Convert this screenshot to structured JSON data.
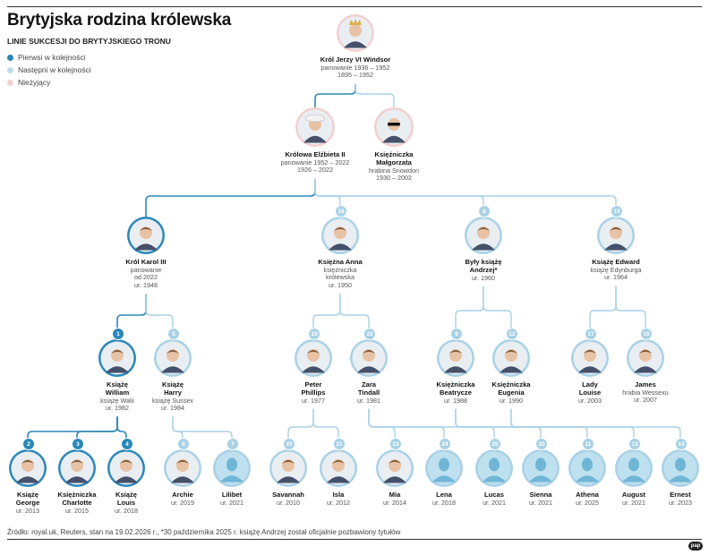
{
  "title": "Brytyjska rodzina królewska",
  "subtitle": "LINIE SUKCESJI DO BRYTYJSKIEGO TRONU",
  "legend": [
    {
      "label": "Pierwsi w kolejności",
      "color": "#2b87b8"
    },
    {
      "label": "Następni w kolejności",
      "color": "#bcdcec"
    },
    {
      "label": "Nieżyjący",
      "color": "#f1d0cf"
    }
  ],
  "colors": {
    "first": "#2b87b8",
    "next": "#a9d1e6",
    "deceased": "#f1d0cf",
    "line_first": "#2b87b8",
    "line_next": "#a9d1e6"
  },
  "people": [
    {
      "id": "jerzy",
      "status": "deceased",
      "icon": "portrait-crown",
      "lines": [
        "Król Jerzy VI Windsor",
        "panowanie 1936 – 1952",
        "1895 – 1952"
      ],
      "bold": 1
    },
    {
      "id": "elzbieta",
      "status": "deceased",
      "icon": "portrait-hat",
      "lines": [
        "Królowa Elżbieta II",
        "panowanie 1952 – 2022",
        "1926 – 2022"
      ],
      "bold": 1
    },
    {
      "id": "malgorzata",
      "status": "deceased",
      "icon": "portrait-sunglasses",
      "lines": [
        "Księżniczka",
        "Małgorzata",
        "hrabina Snowdon",
        "1930 – 2002"
      ],
      "bold": 2
    },
    {
      "id": "karol",
      "status": "first",
      "icon": "portrait",
      "lines": [
        "Król Karol III",
        "panowanie",
        "od 2022",
        "ur. 1948"
      ],
      "bold": 1
    },
    {
      "id": "anna",
      "status": "next",
      "rank": "18",
      "icon": "portrait",
      "lines": [
        "Księżna Anna",
        "księżniczka",
        "królewska",
        "ur. 1950"
      ],
      "bold": 1
    },
    {
      "id": "andrzej",
      "status": "next",
      "rank": "8",
      "icon": "portrait",
      "lines": [
        "Były książę",
        "Andrzej*",
        "ur. 1960"
      ],
      "bold": 2
    },
    {
      "id": "edward",
      "status": "next",
      "rank": "15",
      "icon": "portrait",
      "lines": [
        "Książę Edward",
        "książę Edynburga",
        "ur. 1964"
      ],
      "bold": 1
    },
    {
      "id": "william",
      "status": "first",
      "rank": "1",
      "icon": "portrait",
      "lines": [
        "Książę",
        "William",
        "książę Walii",
        "ur. 1982"
      ],
      "bold": 2
    },
    {
      "id": "harry",
      "status": "next",
      "rank": "5",
      "icon": "portrait",
      "lines": [
        "Książę",
        "Harry",
        "książę Sussex",
        "ur. 1984"
      ],
      "bold": 2
    },
    {
      "id": "peter",
      "status": "next",
      "rank": "19",
      "icon": "portrait",
      "lines": [
        "Peter",
        "Phillips",
        "ur. 1977"
      ],
      "bold": 2
    },
    {
      "id": "zara",
      "status": "next",
      "rank": "22",
      "icon": "portrait",
      "lines": [
        "Zara",
        "Tindall",
        "ur. 1981"
      ],
      "bold": 2
    },
    {
      "id": "beatrycze",
      "status": "next",
      "rank": "9",
      "icon": "portrait",
      "lines": [
        "Księżniczka",
        "Beatrycze",
        "ur. 1988"
      ],
      "bold": 2
    },
    {
      "id": "eugenia",
      "status": "next",
      "rank": "12",
      "icon": "portrait",
      "lines": [
        "Księżniczka",
        "Eugenia",
        "ur. 1990"
      ],
      "bold": 2
    },
    {
      "id": "louise",
      "status": "next",
      "rank": "17",
      "icon": "portrait",
      "lines": [
        "Lady",
        "Louise",
        "ur. 2003"
      ],
      "bold": 2
    },
    {
      "id": "james",
      "status": "next",
      "rank": "16",
      "icon": "portrait",
      "lines": [
        "James",
        "hrabia Wessexu",
        "ur. 2007"
      ],
      "bold": 1
    },
    {
      "id": "george",
      "status": "first",
      "rank": "2",
      "icon": "portrait",
      "lines": [
        "Książę",
        "George",
        "ur. 2013"
      ],
      "bold": 2
    },
    {
      "id": "charlotte",
      "status": "first",
      "rank": "3",
      "icon": "portrait",
      "lines": [
        "Księżniczka",
        "Charlotte",
        "ur. 2015"
      ],
      "bold": 2
    },
    {
      "id": "louis",
      "status": "first",
      "rank": "4",
      "icon": "portrait",
      "lines": [
        "Książę",
        "Louis",
        "ur. 2018"
      ],
      "bold": 2
    },
    {
      "id": "archie",
      "status": "next",
      "rank": "6",
      "icon": "portrait",
      "lines": [
        "Archie",
        "ur. 2019"
      ],
      "bold": 1
    },
    {
      "id": "lilibet",
      "status": "next",
      "rank": "7",
      "icon": "silhouette",
      "lines": [
        "Lilibet",
        "ur. 2021"
      ],
      "bold": 1
    },
    {
      "id": "savannah",
      "status": "next",
      "rank": "20",
      "icon": "portrait",
      "lines": [
        "Savannah",
        "ur. 2010"
      ],
      "bold": 1
    },
    {
      "id": "isla",
      "status": "next",
      "rank": "21",
      "icon": "portrait",
      "lines": [
        "Isla",
        "ur. 2012"
      ],
      "bold": 1
    },
    {
      "id": "mia",
      "status": "next",
      "rank": "23",
      "icon": "portrait",
      "lines": [
        "Mia",
        "ur. 2014"
      ],
      "bold": 1
    },
    {
      "id": "lena",
      "status": "next",
      "rank": "24",
      "icon": "silhouette",
      "lines": [
        "Lena",
        "ur. 2018"
      ],
      "bold": 1
    },
    {
      "id": "lucas",
      "status": "next",
      "rank": "25",
      "icon": "silhouette",
      "lines": [
        "Lucas",
        "ur. 2021"
      ],
      "bold": 1
    },
    {
      "id": "sienna",
      "status": "next",
      "rank": "10",
      "icon": "silhouette",
      "lines": [
        "Sienna",
        "ur. 2021"
      ],
      "bold": 1
    },
    {
      "id": "athena",
      "status": "next",
      "rank": "11",
      "icon": "silhouette",
      "lines": [
        "Athena",
        "ur. 2025"
      ],
      "bold": 1
    },
    {
      "id": "august",
      "status": "next",
      "rank": "13",
      "icon": "silhouette",
      "lines": [
        "August",
        "ur. 2021"
      ],
      "bold": 1
    },
    {
      "id": "ernest",
      "status": "next",
      "rank": "14",
      "icon": "silhouette",
      "lines": [
        "Ernest",
        "ur. 2023"
      ],
      "bold": 1
    }
  ],
  "relations": [
    {
      "parent": "jerzy",
      "children": [
        "elzbieta",
        "malgorzata"
      ]
    },
    {
      "parent": "elzbieta",
      "children": [
        "karol",
        "anna",
        "andrzej",
        "edward"
      ]
    },
    {
      "parent": "karol",
      "children": [
        "william",
        "harry"
      ]
    },
    {
      "parent": "anna",
      "children": [
        "peter",
        "zara"
      ]
    },
    {
      "parent": "andrzej",
      "children": [
        "beatrycze",
        "eugenia"
      ]
    },
    {
      "parent": "edward",
      "children": [
        "louise",
        "james"
      ]
    },
    {
      "parent": "william",
      "children": [
        "george",
        "charlotte",
        "louis"
      ]
    },
    {
      "parent": "harry",
      "children": [
        "archie",
        "lilibet"
      ]
    },
    {
      "parent": "peter",
      "children": [
        "savannah",
        "isla"
      ]
    },
    {
      "parent": "zara",
      "children": [
        "mia",
        "lena",
        "lucas"
      ]
    },
    {
      "parent": "beatrycze",
      "children": [
        "sienna",
        "athena"
      ]
    },
    {
      "parent": "eugenia",
      "children": [
        "august",
        "ernest"
      ]
    }
  ],
  "source": "Źródło: royal.uk, Reuters, stan na 19.02.2026 r., *30 października 2025 r. książę Andrzej został oficjalnie pozbawiony tytułów",
  "logo": "pap"
}
